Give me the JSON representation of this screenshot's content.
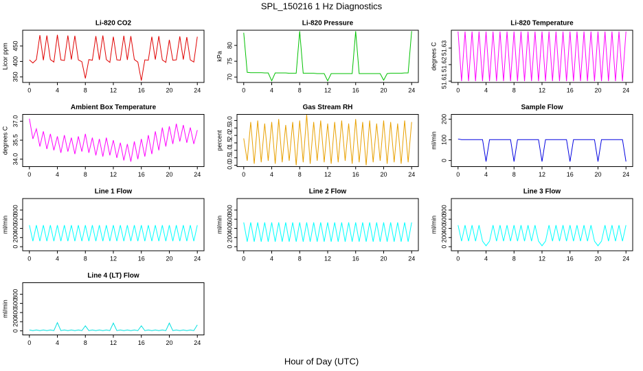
{
  "title": "SPL_150216  1 Hz Diagnostics",
  "xlabel": "Hour of Day (UTC)",
  "chart_data": [
    {
      "type": "line",
      "title": "Li-820 CO2",
      "ylabel": "Licor ppm",
      "color": "#e00000",
      "xlim": [
        -0.96,
        24.96
      ],
      "xticks": [
        0,
        4,
        8,
        12,
        16,
        20,
        24
      ],
      "ylim": [
        332,
        501
      ],
      "yticks": [
        350,
        400,
        450
      ],
      "x": [
        0,
        0.5,
        1,
        1.5,
        2,
        2.5,
        3,
        3.5,
        4,
        4.5,
        5,
        5.5,
        6,
        6.5,
        7,
        7.5,
        8,
        8.5,
        9,
        9.5,
        10,
        10.5,
        11,
        11.5,
        12,
        12.5,
        13,
        13.5,
        14,
        14.5,
        15,
        15.5,
        16,
        16.5,
        17,
        17.5,
        18,
        18.5,
        19,
        19.5,
        20,
        20.5,
        21,
        21.5,
        22,
        22.5,
        23,
        23.5,
        24
      ],
      "values": [
        405,
        395,
        406,
        485,
        404,
        484,
        406,
        398,
        486,
        405,
        403,
        484,
        406,
        483,
        405,
        399,
        345,
        406,
        404,
        482,
        405,
        484,
        406,
        397,
        480,
        405,
        404,
        483,
        405,
        482,
        406,
        398,
        338,
        405,
        404,
        480,
        406,
        482,
        405,
        397,
        470,
        404,
        405,
        481,
        406,
        479,
        405,
        398,
        480
      ]
    },
    {
      "type": "line",
      "title": "Li-820 Pressure",
      "ylabel": "kPa",
      "color": "#00c000",
      "xlim": [
        -0.96,
        24.96
      ],
      "xticks": [
        0,
        4,
        8,
        12,
        16,
        20,
        24
      ],
      "ylim": [
        68.3,
        84.8
      ],
      "yticks": [
        70,
        75,
        80
      ],
      "x": [
        0,
        0.5,
        1,
        1.5,
        2,
        2.5,
        3,
        3.5,
        4,
        4.5,
        5,
        5.5,
        6,
        6.5,
        7,
        7.5,
        8,
        8.5,
        9,
        9.5,
        10,
        10.5,
        11,
        11.5,
        12,
        12.5,
        13,
        13.5,
        14,
        14.5,
        15,
        15.5,
        16,
        16.5,
        17,
        17.5,
        18,
        18.5,
        19,
        19.5,
        20,
        20.5,
        21,
        21.5,
        22,
        22.5,
        23,
        23.5,
        24
      ],
      "values": [
        84,
        71.5,
        71.4,
        71.4,
        71.4,
        71.4,
        71.3,
        71.3,
        68.8,
        71.3,
        71.3,
        71.3,
        71.3,
        71.2,
        71.2,
        71.2,
        84.5,
        71.2,
        71.2,
        71.2,
        71.2,
        71.1,
        71.1,
        71.1,
        68.8,
        71.1,
        71.1,
        71.1,
        71.1,
        71.1,
        71.1,
        71.1,
        84.5,
        71.1,
        71.1,
        71.1,
        71.1,
        71.1,
        71.1,
        71.1,
        69,
        71.1,
        71.2,
        71.2,
        71.2,
        71.2,
        71.3,
        71.3,
        84.5
      ]
    },
    {
      "type": "line",
      "title": "Li-820 Temperature",
      "ylabel": "degrees C",
      "color": "#ff00ff",
      "xlim": [
        -0.96,
        24.96
      ],
      "xticks": [
        0,
        4,
        8,
        12,
        16,
        20,
        24
      ],
      "ylim": [
        51.6092,
        51.6408
      ],
      "yticks": [
        51.61,
        51.62,
        51.63
      ],
      "x": [
        0,
        0.5,
        1,
        1.5,
        2,
        2.5,
        3,
        3.5,
        4,
        4.5,
        5,
        5.5,
        6,
        6.5,
        7,
        7.5,
        8,
        8.5,
        9,
        9.5,
        10,
        10.5,
        11,
        11.5,
        12,
        12.5,
        13,
        13.5,
        14,
        14.5,
        15,
        15.5,
        16,
        16.5,
        17,
        17.5,
        18,
        18.5,
        19,
        19.5,
        20,
        20.5,
        21,
        21.5,
        22,
        22.5,
        23,
        23.5,
        24
      ],
      "values": [
        51.64,
        51.61,
        51.64,
        51.61,
        51.64,
        51.61,
        51.64,
        51.61,
        51.64,
        51.61,
        51.64,
        51.61,
        51.64,
        51.61,
        51.64,
        51.61,
        51.64,
        51.61,
        51.64,
        51.61,
        51.64,
        51.61,
        51.64,
        51.61,
        51.64,
        51.61,
        51.64,
        51.61,
        51.64,
        51.61,
        51.64,
        51.61,
        51.64,
        51.61,
        51.64,
        51.61,
        51.64,
        51.61,
        51.64,
        51.61,
        51.64,
        51.61,
        51.64,
        51.61,
        51.64,
        51.61,
        51.64,
        51.61,
        51.64
      ]
    },
    {
      "type": "line",
      "title": "Ambient Box Temperature",
      "ylabel": "degrees C",
      "color": "#ff00ff",
      "xlim": [
        -0.96,
        24.96
      ],
      "xticks": [
        0,
        4,
        8,
        12,
        16,
        20,
        24
      ],
      "ylim": [
        33.41,
        37.54
      ],
      "yticks": [
        {
          "value": 34,
          "label": "34.0"
        },
        35.5,
        {
          "value": 37,
          "label": "37.0"
        }
      ],
      "x": [
        0,
        0.5,
        1,
        1.5,
        2,
        2.5,
        3,
        3.5,
        4,
        4.5,
        5,
        5.5,
        6,
        6.5,
        7,
        7.5,
        8,
        8.5,
        9,
        9.5,
        10,
        10.5,
        11,
        11.5,
        12,
        12.5,
        13,
        13.5,
        14,
        14.5,
        15,
        15.5,
        16,
        16.5,
        17,
        17.5,
        18,
        18.5,
        19,
        19.5,
        20,
        20.5,
        21,
        21.5,
        22,
        22.5,
        23,
        23.5,
        24
      ],
      "values": [
        37.2,
        35.6,
        36.4,
        35.0,
        36.2,
        34.8,
        36.0,
        34.7,
        35.8,
        34.5,
        35.9,
        34.6,
        35.7,
        34.4,
        35.8,
        34.6,
        36.0,
        34.5,
        35.7,
        34.3,
        35.6,
        34.2,
        35.7,
        34.3,
        35.5,
        34.1,
        35.3,
        33.9,
        35.2,
        33.8,
        35.4,
        34.0,
        35.6,
        34.2,
        35.9,
        34.4,
        36.2,
        34.7,
        36.5,
        35.0,
        36.6,
        35.2,
        36.8,
        35.4,
        36.7,
        35.3,
        36.5,
        35.2,
        36.3
      ]
    },
    {
      "type": "line",
      "title": "Gas Stream RH",
      "ylabel": "percent",
      "color": "#e8a000",
      "xlim": [
        -0.96,
        24.96
      ],
      "xticks": [
        0,
        4,
        8,
        12,
        16,
        20,
        24
      ],
      "ylim": [
        -0.09,
        3.41
      ],
      "yticks": [
        {
          "value": 0,
          "label": "0.0"
        },
        0.5,
        {
          "value": 1,
          "label": "1.0"
        },
        1.5,
        {
          "value": 2,
          "label": "2.0"
        },
        2.5,
        {
          "value": 3,
          "label": "3.0"
        }
      ],
      "x": [
        0,
        0.5,
        1,
        1.5,
        2,
        2.5,
        3,
        3.5,
        4,
        4.5,
        5,
        5.5,
        6,
        6.5,
        7,
        7.5,
        8,
        8.5,
        9,
        9.5,
        10,
        10.5,
        11,
        11.5,
        12,
        12.5,
        13,
        13.5,
        14,
        14.5,
        15,
        15.5,
        16,
        16.5,
        17,
        17.5,
        18,
        18.5,
        19,
        19.5,
        20,
        20.5,
        21,
        21.5,
        22,
        22.5,
        23,
        23.5,
        24
      ],
      "values": [
        1.8,
        0.3,
        2.9,
        0.1,
        3.0,
        0.2,
        2.8,
        0.3,
        2.9,
        0.1,
        3.1,
        0.2,
        2.7,
        0.3,
        2.9,
        0.0,
        3.0,
        0.2,
        3.4,
        0.1,
        2.9,
        0.3,
        3.0,
        0.2,
        2.8,
        0.1,
        2.9,
        0.2,
        3.0,
        0.3,
        2.8,
        0.1,
        3.1,
        0.2,
        2.9,
        0.0,
        3.0,
        0.2,
        2.8,
        0.3,
        3.0,
        0.1,
        2.9,
        0.2,
        2.8,
        0.1,
        3.0,
        0.2,
        2.9
      ]
    },
    {
      "type": "line",
      "title": "Sample Flow",
      "ylabel": "ml/min",
      "color": "#0000e0",
      "xlim": [
        -0.96,
        24.96
      ],
      "xticks": [
        0,
        4,
        8,
        12,
        16,
        20,
        24
      ],
      "ylim": [
        -29.5,
        223
      ],
      "yticks": [
        0,
        100,
        200
      ],
      "x": [
        0,
        0.5,
        1,
        1.5,
        2,
        2.5,
        3,
        3.5,
        4,
        4.5,
        5,
        5.5,
        6,
        6.5,
        7,
        7.5,
        8,
        8.5,
        9,
        9.5,
        10,
        10.5,
        11,
        11.5,
        12,
        12.5,
        13,
        13.5,
        14,
        14.5,
        15,
        15.5,
        16,
        16.5,
        17,
        17.5,
        18,
        18.5,
        19,
        19.5,
        20,
        20.5,
        21,
        21.5,
        22,
        22.5,
        23,
        23.5,
        24
      ],
      "values": [
        104,
        101,
        101,
        101,
        101,
        101,
        101,
        101,
        -5,
        101,
        101,
        101,
        101,
        101,
        101,
        101,
        -5,
        101,
        101,
        101,
        101,
        101,
        101,
        101,
        -5,
        101,
        101,
        101,
        101,
        101,
        101,
        101,
        -5,
        101,
        101,
        101,
        101,
        101,
        101,
        101,
        -5,
        101,
        101,
        101,
        101,
        101,
        101,
        101,
        -5
      ]
    },
    {
      "type": "line",
      "title": "Line 1 Flow",
      "ylabel": "ml/min",
      "color": "#00ffff",
      "xlim": [
        -0.96,
        24.96
      ],
      "xticks": [
        0,
        4,
        8,
        12,
        16,
        20,
        24
      ],
      "ylim": [
        -89,
        1052
      ],
      "yticks": [
        0,
        200,
        400,
        600,
        800
      ],
      "x": [
        0,
        0.5,
        1,
        1.5,
        2,
        2.5,
        3,
        3.5,
        4,
        4.5,
        5,
        5.5,
        6,
        6.5,
        7,
        7.5,
        8,
        8.5,
        9,
        9.5,
        10,
        10.5,
        11,
        11.5,
        12,
        12.5,
        13,
        13.5,
        14,
        14.5,
        15,
        15.5,
        16,
        16.5,
        17,
        17.5,
        18,
        18.5,
        19,
        19.5,
        20,
        20.5,
        21,
        21.5,
        22,
        22.5,
        23,
        23.5,
        24
      ],
      "values": [
        470,
        120,
        470,
        120,
        470,
        120,
        470,
        120,
        470,
        120,
        470,
        120,
        470,
        120,
        470,
        120,
        470,
        120,
        470,
        120,
        470,
        120,
        470,
        120,
        470,
        120,
        470,
        120,
        470,
        120,
        470,
        120,
        470,
        120,
        470,
        120,
        470,
        120,
        470,
        120,
        470,
        120,
        470,
        120,
        470,
        120,
        470,
        120,
        470
      ]
    },
    {
      "type": "line",
      "title": "Line 2 Flow",
      "ylabel": "ml/min",
      "color": "#00ffff",
      "xlim": [
        -0.96,
        24.96
      ],
      "xticks": [
        0,
        4,
        8,
        12,
        16,
        20,
        24
      ],
      "ylim": [
        -89,
        1052
      ],
      "yticks": [
        0,
        200,
        400,
        600,
        800
      ],
      "x": [
        0,
        0.5,
        1,
        1.5,
        2,
        2.5,
        3,
        3.5,
        4,
        4.5,
        5,
        5.5,
        6,
        6.5,
        7,
        7.5,
        8,
        8.5,
        9,
        9.5,
        10,
        10.5,
        11,
        11.5,
        12,
        12.5,
        13,
        13.5,
        14,
        14.5,
        15,
        15.5,
        16,
        16.5,
        17,
        17.5,
        18,
        18.5,
        19,
        19.5,
        20,
        20.5,
        21,
        21.5,
        22,
        22.5,
        23,
        23.5,
        24
      ],
      "values": [
        530,
        110,
        530,
        110,
        530,
        110,
        530,
        110,
        530,
        110,
        530,
        110,
        530,
        110,
        530,
        110,
        530,
        110,
        530,
        110,
        530,
        110,
        530,
        110,
        530,
        110,
        530,
        110,
        530,
        110,
        530,
        110,
        530,
        110,
        530,
        110,
        530,
        110,
        530,
        110,
        530,
        110,
        530,
        110,
        530,
        110,
        530,
        110,
        530
      ]
    },
    {
      "type": "line",
      "title": "Line 3 Flow",
      "ylabel": "ml/min",
      "color": "#00ffff",
      "xlim": [
        -0.96,
        24.96
      ],
      "xticks": [
        0,
        4,
        8,
        12,
        16,
        20,
        24
      ],
      "ylim": [
        -89,
        1052
      ],
      "yticks": [
        0,
        200,
        400,
        600,
        800
      ],
      "x": [
        0,
        0.5,
        1,
        1.5,
        2,
        2.5,
        3,
        3.5,
        4,
        4.5,
        5,
        5.5,
        6,
        6.5,
        7,
        7.5,
        8,
        8.5,
        9,
        9.5,
        10,
        10.5,
        11,
        11.5,
        12,
        12.5,
        13,
        13.5,
        14,
        14.5,
        15,
        15.5,
        16,
        16.5,
        17,
        17.5,
        18,
        18.5,
        19,
        19.5,
        20,
        20.5,
        21,
        21.5,
        22,
        22.5,
        23,
        23.5,
        24
      ],
      "values": [
        470,
        120,
        470,
        120,
        470,
        120,
        470,
        120,
        20,
        120,
        470,
        120,
        470,
        120,
        470,
        120,
        470,
        120,
        470,
        120,
        470,
        120,
        470,
        120,
        20,
        120,
        470,
        120,
        470,
        120,
        470,
        120,
        470,
        120,
        470,
        120,
        470,
        120,
        470,
        120,
        20,
        120,
        470,
        120,
        470,
        120,
        470,
        120,
        470
      ]
    },
    {
      "type": "line",
      "title": "Line 4 (LT) Flow",
      "ylabel": "ml/min",
      "color": "#00e0e0",
      "xlim": [
        -0.96,
        24.96
      ],
      "xticks": [
        0,
        4,
        8,
        12,
        16,
        20,
        24
      ],
      "ylim": [
        -89,
        1052
      ],
      "yticks": [
        0,
        200,
        400,
        600,
        800
      ],
      "x": [
        0,
        0.5,
        1,
        1.5,
        2,
        2.5,
        3,
        3.5,
        4,
        4.5,
        5,
        5.5,
        6,
        6.5,
        7,
        7.5,
        8,
        8.5,
        9,
        9.5,
        10,
        10.5,
        11,
        11.5,
        12,
        12.5,
        13,
        13.5,
        14,
        14.5,
        15,
        15.5,
        16,
        16.5,
        17,
        17.5,
        18,
        18.5,
        19,
        19.5,
        20,
        20.5,
        21,
        21.5,
        22,
        22.5,
        23,
        23.5,
        24
      ],
      "values": [
        20,
        5,
        20,
        5,
        20,
        5,
        20,
        5,
        180,
        5,
        20,
        5,
        20,
        5,
        20,
        5,
        110,
        5,
        20,
        5,
        20,
        5,
        20,
        5,
        170,
        5,
        20,
        5,
        20,
        5,
        20,
        5,
        110,
        5,
        20,
        5,
        20,
        5,
        20,
        5,
        170,
        5,
        20,
        5,
        20,
        5,
        20,
        5,
        130
      ]
    }
  ]
}
